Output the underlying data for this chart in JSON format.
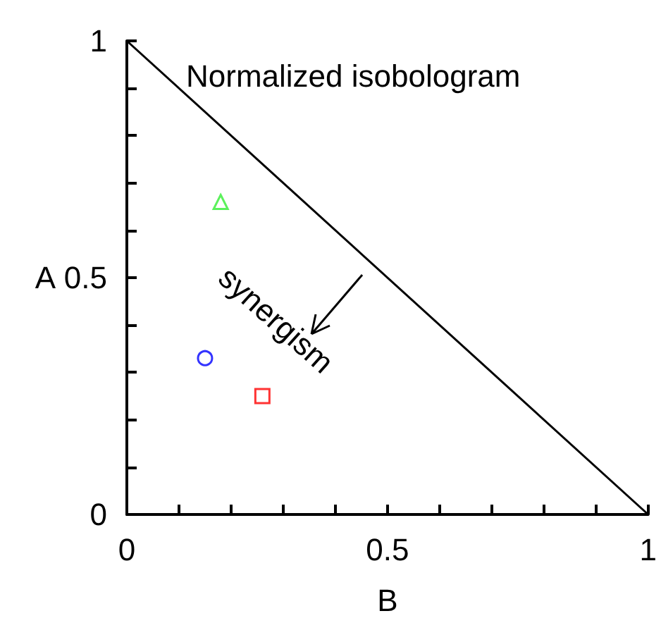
{
  "chart_data": {
    "type": "scatter",
    "xlabel": "B",
    "ylabel": "A",
    "annotations": [
      "Normalized isobologram",
      "synergism"
    ],
    "xlim": [
      0,
      1
    ],
    "ylim": [
      0,
      1
    ],
    "xticks": [
      0,
      {
        "value": 0.1,
        "label": null
      },
      {
        "value": 0.2,
        "label": null
      },
      {
        "value": 0.3,
        "label": null
      },
      {
        "value": 0.4,
        "label": null
      },
      0.5,
      {
        "value": 0.6,
        "label": null
      },
      {
        "value": 0.7,
        "label": null
      },
      {
        "value": 0.8,
        "label": null
      },
      {
        "value": 0.9,
        "label": null
      },
      1
    ],
    "yticks": [
      0,
      {
        "value": 0.1,
        "label": null
      },
      {
        "value": 0.2,
        "label": null
      },
      {
        "value": 0.3,
        "label": null
      },
      {
        "value": 0.4,
        "label": null
      },
      0.5,
      {
        "value": 0.6,
        "label": null
      },
      {
        "value": 0.7,
        "label": null
      },
      {
        "value": 0.8,
        "label": null
      },
      {
        "value": 0.9,
        "label": null
      },
      1
    ],
    "grid": false,
    "series": [
      {
        "type": "line",
        "color": "#000000",
        "x": [
          0,
          1
        ],
        "values": [
          1,
          0
        ],
        "marker": "none",
        "line_style": "solid"
      },
      {
        "color": "#33ee33",
        "x": [
          0.18
        ],
        "values": [
          0.66
        ],
        "marker": "triangle"
      },
      {
        "color": "#0000ff",
        "x": [
          0.15
        ],
        "values": [
          0.33
        ],
        "marker": "circle"
      },
      {
        "color": "#ff0000",
        "x": [
          0.26
        ],
        "values": [
          0.25
        ],
        "marker": "square"
      }
    ]
  }
}
